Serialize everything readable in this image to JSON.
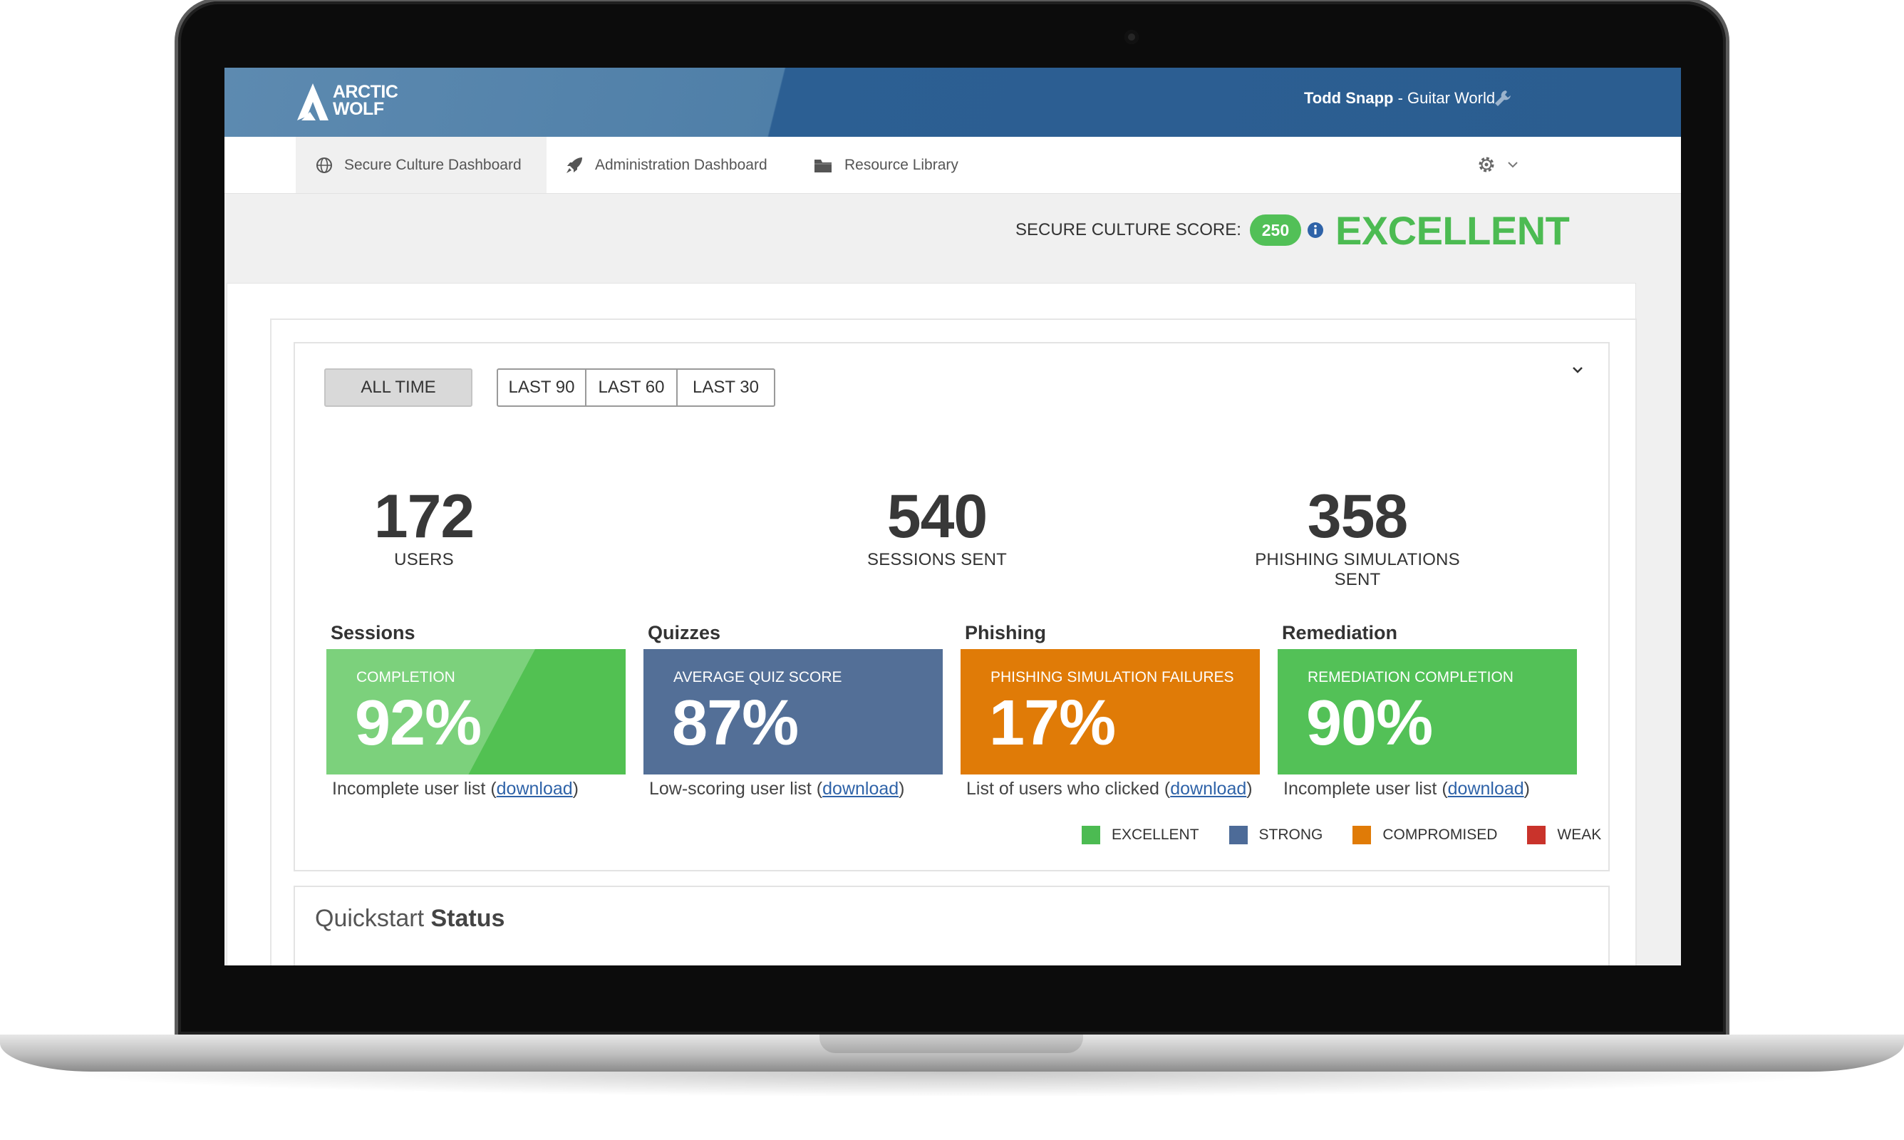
{
  "header": {
    "logo_text_1": "ARCTIC",
    "logo_text_2": "WOLF",
    "user_name": "Todd Snapp",
    "user_org": " - Guitar World",
    "user_icon": "wrench-icon"
  },
  "nav": {
    "tabs": [
      {
        "label": "Secure Culture Dashboard",
        "icon": "globe-icon",
        "active": true
      },
      {
        "label": "Administration Dashboard",
        "icon": "rocket-icon",
        "active": false
      },
      {
        "label": "Resource Library",
        "icon": "folder-icon",
        "active": false
      }
    ],
    "settings_icon": "gear-icon"
  },
  "score": {
    "label": "SECURE CULTURE SCORE:",
    "value": "250",
    "level": "EXCELLENT",
    "level_color": "#4cbb52"
  },
  "filters": {
    "all_time": "ALL TIME",
    "last_90": "LAST 90",
    "last_60": "LAST 60",
    "last_30": "LAST 30",
    "selected": "ALL TIME"
  },
  "stats": [
    {
      "value": "172",
      "label": "USERS"
    },
    {
      "value": "540",
      "label": "SESSIONS SENT"
    },
    {
      "value": "358",
      "label": "PHISHING SIMULATIONS SENT"
    }
  ],
  "metrics": [
    {
      "category": "Sessions",
      "title": "COMPLETION",
      "value": "92%",
      "footer": "Incomplete user list (",
      "link": "download",
      "footer_end": ")",
      "color": "#52c152"
    },
    {
      "category": "Quizzes",
      "title": "AVERAGE QUIZ SCORE",
      "value": "87%",
      "footer": "Low-scoring user list (",
      "link": "download",
      "footer_end": ")",
      "color": "#536f97"
    },
    {
      "category": "Phishing",
      "title": "PHISHING SIMULATION  FAILURES",
      "value": "17%",
      "footer": "List of users who clicked (",
      "link": "download",
      "footer_end": ")",
      "color": "#e07b07"
    },
    {
      "category": "Remediation",
      "title": "REMEDIATION COMPLETION",
      "value": "90%",
      "footer": "Incomplete user list (",
      "link": "download",
      "footer_end": ")",
      "color": "#53c157"
    }
  ],
  "legend": [
    {
      "label": "EXCELLENT",
      "color": "#4cbb52"
    },
    {
      "label": "STRONG",
      "color": "#4d6b98"
    },
    {
      "label": "COMPROMISED",
      "color": "#e07b07"
    },
    {
      "label": "WEAK",
      "color": "#c9332b"
    }
  ],
  "quickstart": {
    "title_light": "Quickstart ",
    "title_bold": "Status"
  }
}
